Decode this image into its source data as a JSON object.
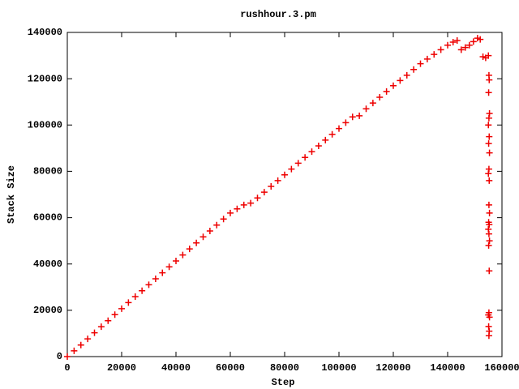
{
  "chart_data": {
    "type": "scatter",
    "title": "rushhour.3.pm",
    "x_label": "Step",
    "y_label": "Stack Size",
    "color": "#ee0000",
    "marker": "+",
    "x": [
      0,
      2500,
      5000,
      7500,
      10000,
      12500,
      15000,
      17500,
      20000,
      22500,
      25000,
      27500,
      30000,
      32500,
      35000,
      37500,
      40000,
      42500,
      45000,
      47500,
      50000,
      52500,
      55000,
      57500,
      60000,
      62500,
      65000,
      67500,
      70000,
      72500,
      75000,
      77500,
      80000,
      82500,
      85000,
      87500,
      90000,
      92500,
      95000,
      97500,
      100000,
      102500,
      105000,
      107500,
      110000,
      112500,
      115000,
      117500,
      120000,
      122500,
      125000,
      127500,
      130000,
      132500,
      135000,
      137500,
      140000,
      142000,
      143500,
      145000,
      146500,
      148000,
      149500,
      151000,
      152000,
      153000,
      154000,
      155000,
      155200,
      155300,
      155100,
      155400,
      155200,
      155000,
      155300,
      155100,
      155400,
      155200,
      155000,
      155300,
      155200,
      155400,
      155100,
      155300,
      155000,
      155200,
      155400,
      155100,
      155300,
      155200,
      155000,
      155400,
      155100,
      155300,
      155200
    ],
    "values": [
      0,
      2500,
      5000,
      7650,
      10300,
      12900,
      15500,
      18100,
      20700,
      23300,
      25900,
      28450,
      31000,
      33600,
      36200,
      38750,
      41300,
      43900,
      46500,
      49100,
      51700,
      54250,
      56800,
      59400,
      62000,
      63800,
      65500,
      66300,
      68500,
      71000,
      73500,
      76000,
      78500,
      81000,
      83500,
      86000,
      88500,
      91000,
      93500,
      96000,
      98500,
      101000,
      103500,
      104000,
      107000,
      109500,
      112000,
      114500,
      117000,
      119200,
      121500,
      124000,
      126500,
      128500,
      130500,
      132500,
      134500,
      135800,
      136500,
      132500,
      133500,
      134500,
      136000,
      137500,
      137000,
      129500,
      129000,
      130000,
      121500,
      119500,
      114000,
      105000,
      103000,
      100000,
      95000,
      92000,
      88000,
      81000,
      79000,
      76000,
      65500,
      62000,
      58000,
      57000,
      55000,
      53000,
      50000,
      48000,
      37000,
      19000,
      18000,
      17000,
      13000,
      11000,
      9000
    ],
    "xlim": [
      0,
      160000
    ],
    "ylim": [
      0,
      140000
    ],
    "xticks": [
      0,
      20000,
      40000,
      60000,
      80000,
      100000,
      120000,
      140000,
      160000
    ],
    "yticks": [
      0,
      20000,
      40000,
      60000,
      80000,
      100000,
      120000,
      140000
    ]
  }
}
